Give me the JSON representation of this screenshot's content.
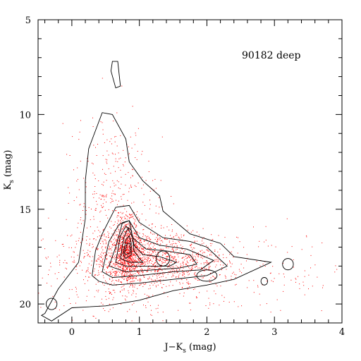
{
  "chart_data": {
    "type": "scatter",
    "title": "",
    "annotation": "90182 deep",
    "xlabel": "J−K",
    "xlabel_sub": "s",
    "xlabel_unit": " (mag)",
    "ylabel": "K",
    "ylabel_sub": "s",
    "ylabel_unit": " (mag)",
    "xlim": [
      -0.5,
      4
    ],
    "ylim": [
      21,
      5
    ],
    "y_inverted": true,
    "x_ticks": [
      0,
      1,
      2,
      3,
      4
    ],
    "y_ticks": [
      5,
      10,
      15,
      20
    ],
    "x_minor_step": 0.2,
    "y_minor_step": 1,
    "grid": false,
    "colors": {
      "points": "#ff0000",
      "contours": "#000000"
    },
    "point_clouds": [
      {
        "cx": 0.82,
        "cy": 17.2,
        "sx": 0.1,
        "sy": 0.8,
        "n": 900
      },
      {
        "cx": 1.0,
        "cy": 17.6,
        "sx": 0.45,
        "sy": 0.7,
        "n": 700
      },
      {
        "cx": 0.7,
        "cy": 16.5,
        "sx": 0.35,
        "sy": 2.2,
        "n": 350
      },
      {
        "cx": 1.6,
        "cy": 17.7,
        "sx": 0.35,
        "sy": 0.6,
        "n": 250
      },
      {
        "cx": 1.2,
        "cy": 18.3,
        "sx": 1.3,
        "sy": 1.2,
        "n": 450
      },
      {
        "cx": 0.55,
        "cy": 13.0,
        "sx": 0.3,
        "sy": 1.8,
        "n": 150
      },
      {
        "cx": 2.3,
        "cy": 18.0,
        "sx": 0.6,
        "sy": 0.9,
        "n": 80
      }
    ],
    "contour_levels": [
      {
        "level": 1,
        "x": [
          -0.4,
          -0.2,
          0.1,
          0.2,
          0.2,
          0.25,
          0.45,
          0.6,
          0.8,
          0.85,
          1.05,
          1.3,
          1.35,
          1.75,
          2.2,
          2.4,
          2.95,
          2.4,
          2.0,
          1.5,
          1.0,
          0.5,
          0.0,
          -0.3,
          -0.45
        ],
        "y": [
          20.5,
          19.2,
          17.8,
          15.5,
          13.5,
          11.8,
          9.9,
          10.0,
          11.3,
          12.5,
          13.5,
          14.3,
          15.1,
          16.3,
          16.8,
          17.5,
          17.8,
          18.7,
          19.0,
          19.3,
          19.8,
          20.1,
          20.2,
          20.9,
          20.6
        ]
      },
      {
        "level": 2,
        "x": [
          0.3,
          0.35,
          0.45,
          0.65,
          0.85,
          1.0,
          1.35,
          1.75,
          2.0,
          2.3,
          2.0,
          1.5,
          1.0,
          0.6,
          0.4
        ],
        "y": [
          18.5,
          17.2,
          16.3,
          14.9,
          14.8,
          15.7,
          16.5,
          16.7,
          17.0,
          18.0,
          18.5,
          18.7,
          18.9,
          19.0,
          18.8
        ]
      },
      {
        "level": 3,
        "x": [
          0.45,
          0.55,
          0.7,
          0.85,
          1.0,
          1.3,
          1.7,
          2.1,
          1.9,
          1.5,
          1.0,
          0.6
        ],
        "y": [
          18.3,
          16.7,
          15.8,
          15.6,
          16.5,
          16.9,
          17.1,
          17.7,
          18.2,
          18.3,
          18.5,
          18.6
        ]
      },
      {
        "level": 4,
        "x": [
          0.55,
          0.65,
          0.75,
          0.85,
          0.9,
          1.1,
          1.4,
          1.75,
          1.85,
          1.6,
          1.2,
          0.8
        ],
        "y": [
          18.0,
          17.0,
          15.7,
          15.6,
          16.5,
          17.1,
          17.2,
          17.4,
          17.9,
          18.1,
          18.2,
          18.3
        ]
      },
      {
        "level": 5,
        "x": [
          0.65,
          0.72,
          0.8,
          0.88,
          0.92,
          1.05,
          1.3,
          1.55,
          1.45,
          1.1,
          0.8
        ],
        "y": [
          17.8,
          16.4,
          15.9,
          16.1,
          16.9,
          17.4,
          17.5,
          17.8,
          18.0,
          18.0,
          18.0
        ]
      },
      {
        "level": 6,
        "x": [
          0.72,
          0.77,
          0.83,
          0.9,
          0.92,
          1.0,
          1.05,
          0.85
        ],
        "y": [
          17.6,
          16.5,
          16.0,
          16.5,
          17.2,
          17.6,
          17.8,
          17.8
        ]
      },
      {
        "level": 7,
        "x": [
          0.76,
          0.8,
          0.85,
          0.88,
          0.88,
          0.8
        ],
        "y": [
          17.4,
          16.6,
          16.4,
          16.8,
          17.4,
          17.6
        ]
      },
      {
        "level": 8,
        "x": [
          0.78,
          0.82,
          0.86,
          0.86,
          0.8
        ],
        "y": [
          17.3,
          16.8,
          16.8,
          17.3,
          17.4
        ]
      }
    ],
    "isolated_contours": [
      {
        "x": [
          0.6,
          0.68,
          0.72,
          0.65,
          0.58,
          0.6
        ],
        "y": [
          7.2,
          7.2,
          8.5,
          8.6,
          7.7,
          7.2
        ]
      },
      {
        "x": 3.2,
        "y": 17.9,
        "rx": 0.08,
        "ry": 0.3
      },
      {
        "x": 2.85,
        "y": 18.8,
        "rx": 0.05,
        "ry": 0.2
      },
      {
        "x": 1.35,
        "y": 17.6,
        "rx": 0.1,
        "ry": 0.4
      },
      {
        "x": -0.3,
        "y": 20.0,
        "rx": 0.08,
        "ry": 0.3
      },
      {
        "x": 2.0,
        "y": 18.5,
        "rx": 0.15,
        "ry": 0.3
      }
    ]
  }
}
